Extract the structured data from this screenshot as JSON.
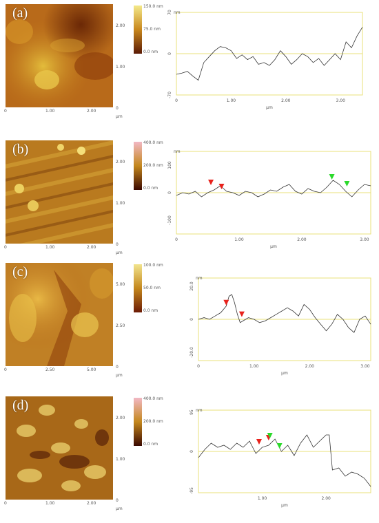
{
  "panels": [
    {
      "label": "(a)",
      "image": {
        "x_ticks": [
          "0",
          "1.00",
          "2.00"
        ],
        "y_ticks": [
          "2.00",
          "1.00",
          "0"
        ],
        "unit": "µm"
      },
      "scale": {
        "ticks": [
          "150.0 nm",
          "75.0 nm",
          "0.0 nm"
        ],
        "colors": [
          "#f4e98a",
          "#c8871c",
          "#5a1a05"
        ]
      },
      "chart_data": {
        "type": "line",
        "ylabel": "nm",
        "xlabel": "µm",
        "xlim": [
          0,
          3.4
        ],
        "ylim": [
          -70,
          70
        ],
        "y_ticks": [
          "70",
          "0",
          "-70"
        ],
        "x_ticks": [
          "0",
          "1.00",
          "2.00",
          "3.00"
        ],
        "x": [
          0,
          0.1,
          0.2,
          0.3,
          0.4,
          0.5,
          0.6,
          0.7,
          0.8,
          0.9,
          1.0,
          1.1,
          1.2,
          1.3,
          1.4,
          1.5,
          1.6,
          1.7,
          1.8,
          1.9,
          2.0,
          2.1,
          2.2,
          2.3,
          2.4,
          2.5,
          2.6,
          2.7,
          2.8,
          2.9,
          3.0,
          3.1,
          3.2,
          3.3,
          3.4
        ],
        "y": [
          -35,
          -33,
          -30,
          -38,
          -45,
          -15,
          -5,
          5,
          12,
          10,
          5,
          -8,
          -2,
          -10,
          -5,
          -18,
          -15,
          -20,
          -10,
          5,
          -5,
          -18,
          -10,
          0,
          -5,
          -15,
          -8,
          -20,
          -10,
          0,
          -10,
          20,
          10,
          30,
          45
        ],
        "markers": []
      }
    },
    {
      "label": "(b)",
      "image": {
        "x_ticks": [
          "0",
          "1.00",
          "2.00"
        ],
        "y_ticks": [
          "2.00",
          "1.00",
          "0"
        ],
        "unit": "µm"
      },
      "scale": {
        "ticks": [
          "400.0 nm",
          "200.0 nm",
          "0.0 nm"
        ],
        "colors": [
          "#f2b8c4",
          "#c4871c",
          "#3a0800"
        ]
      },
      "chart_data": {
        "type": "line",
        "ylabel": "nm",
        "xlabel": "µm",
        "xlim": [
          0,
          3.1
        ],
        "ylim": [
          -150,
          150
        ],
        "y_ticks": [
          "100",
          "0",
          "-100"
        ],
        "x_ticks": [
          "0",
          "1.00",
          "2.00",
          "3.00"
        ],
        "x": [
          0,
          0.1,
          0.2,
          0.3,
          0.4,
          0.5,
          0.6,
          0.7,
          0.8,
          0.9,
          1.0,
          1.1,
          1.2,
          1.3,
          1.4,
          1.5,
          1.6,
          1.7,
          1.8,
          1.9,
          2.0,
          2.1,
          2.2,
          2.3,
          2.4,
          2.5,
          2.6,
          2.7,
          2.8,
          2.9,
          3.0,
          3.1
        ],
        "y": [
          -10,
          0,
          -5,
          5,
          -15,
          0,
          10,
          25,
          5,
          0,
          -10,
          5,
          0,
          -15,
          -5,
          10,
          5,
          20,
          30,
          5,
          -5,
          15,
          5,
          0,
          20,
          45,
          30,
          5,
          -15,
          10,
          30,
          25
        ],
        "markers": [
          {
            "x": 0.55,
            "y": 25,
            "color": "#e8221c"
          },
          {
            "x": 0.72,
            "y": 10,
            "color": "#e8221c"
          },
          {
            "x": 2.48,
            "y": 45,
            "color": "#2bd92b"
          },
          {
            "x": 2.72,
            "y": 20,
            "color": "#2bd92b"
          }
        ]
      }
    },
    {
      "label": "(c)",
      "image": {
        "x_ticks": [
          "0",
          "2.50",
          "5.00"
        ],
        "y_ticks": [
          "5.00",
          "2.50",
          "0"
        ],
        "unit": "µm"
      },
      "scale": {
        "ticks": [
          "100.0 nm",
          "50.0 nm",
          "0.0 nm"
        ],
        "colors": [
          "#f2e48e",
          "#c4871c",
          "#6b1a05"
        ]
      },
      "chart_data": {
        "type": "line",
        "ylabel": "nm",
        "xlabel": "µm",
        "xlim": [
          0,
          3.1
        ],
        "ylim": [
          -25,
          25
        ],
        "y_ticks": [
          "20.0",
          "0",
          "-20.0"
        ],
        "x_ticks": [
          "0",
          "1.00",
          "2.00",
          "3.00"
        ],
        "x": [
          0,
          0.1,
          0.2,
          0.3,
          0.4,
          0.5,
          0.55,
          0.6,
          0.65,
          0.7,
          0.75,
          0.8,
          0.9,
          1.0,
          1.1,
          1.2,
          1.3,
          1.4,
          1.5,
          1.6,
          1.7,
          1.8,
          1.9,
          2.0,
          2.1,
          2.2,
          2.3,
          2.4,
          2.5,
          2.6,
          2.7,
          2.8,
          2.9,
          3.0,
          3.1
        ],
        "y": [
          0,
          1,
          0,
          2,
          4,
          8,
          14,
          15,
          10,
          3,
          -2,
          -1,
          1,
          0,
          -2,
          -1,
          1,
          3,
          5,
          7,
          5,
          2,
          9,
          6,
          1,
          -3,
          -7,
          -3,
          3,
          0,
          -5,
          -8,
          0,
          2,
          -3
        ],
        "markers": [
          {
            "x": 0.5,
            "y": 8,
            "color": "#e8221c"
          },
          {
            "x": 0.78,
            "y": 1,
            "color": "#e8221c"
          }
        ]
      }
    },
    {
      "label": "(d)",
      "image": {
        "x_ticks": [
          "0",
          "1.00",
          "2.00"
        ],
        "y_ticks": [
          "2.00",
          "1.00",
          "0"
        ],
        "unit": "µm"
      },
      "scale": {
        "ticks": [
          "400.0 nm",
          "200.0 nm",
          "0.0 nm"
        ],
        "colors": [
          "#f2b8c4",
          "#c4871c",
          "#3a0800"
        ]
      },
      "chart_data": {
        "type": "line",
        "ylabel": "nm",
        "xlabel": "µm",
        "xlim": [
          0,
          2.7
        ],
        "ylim": [
          -100,
          100
        ],
        "y_ticks": [
          "95",
          "0",
          "-95"
        ],
        "x_ticks": [
          "1.00",
          "2.00"
        ],
        "x": [
          0,
          0.1,
          0.2,
          0.3,
          0.4,
          0.5,
          0.6,
          0.7,
          0.8,
          0.9,
          1.0,
          1.1,
          1.2,
          1.3,
          1.4,
          1.5,
          1.6,
          1.7,
          1.8,
          1.9,
          2.0,
          2.05,
          2.1,
          2.2,
          2.3,
          2.4,
          2.5,
          2.6,
          2.7
        ],
        "y": [
          -15,
          5,
          20,
          10,
          15,
          5,
          20,
          10,
          25,
          -5,
          10,
          15,
          30,
          0,
          15,
          -10,
          20,
          40,
          10,
          25,
          40,
          40,
          -45,
          -40,
          -60,
          -50,
          -55,
          -65,
          -85
        ],
        "markers": [
          {
            "x": 0.95,
            "y": 15,
            "color": "#e8221c"
          },
          {
            "x": 1.1,
            "y": 25,
            "color": "#e8221c"
          },
          {
            "x": 1.12,
            "y": 30,
            "color": "#2bd92b"
          },
          {
            "x": 1.27,
            "y": 5,
            "color": "#2bd92b"
          }
        ]
      }
    }
  ]
}
